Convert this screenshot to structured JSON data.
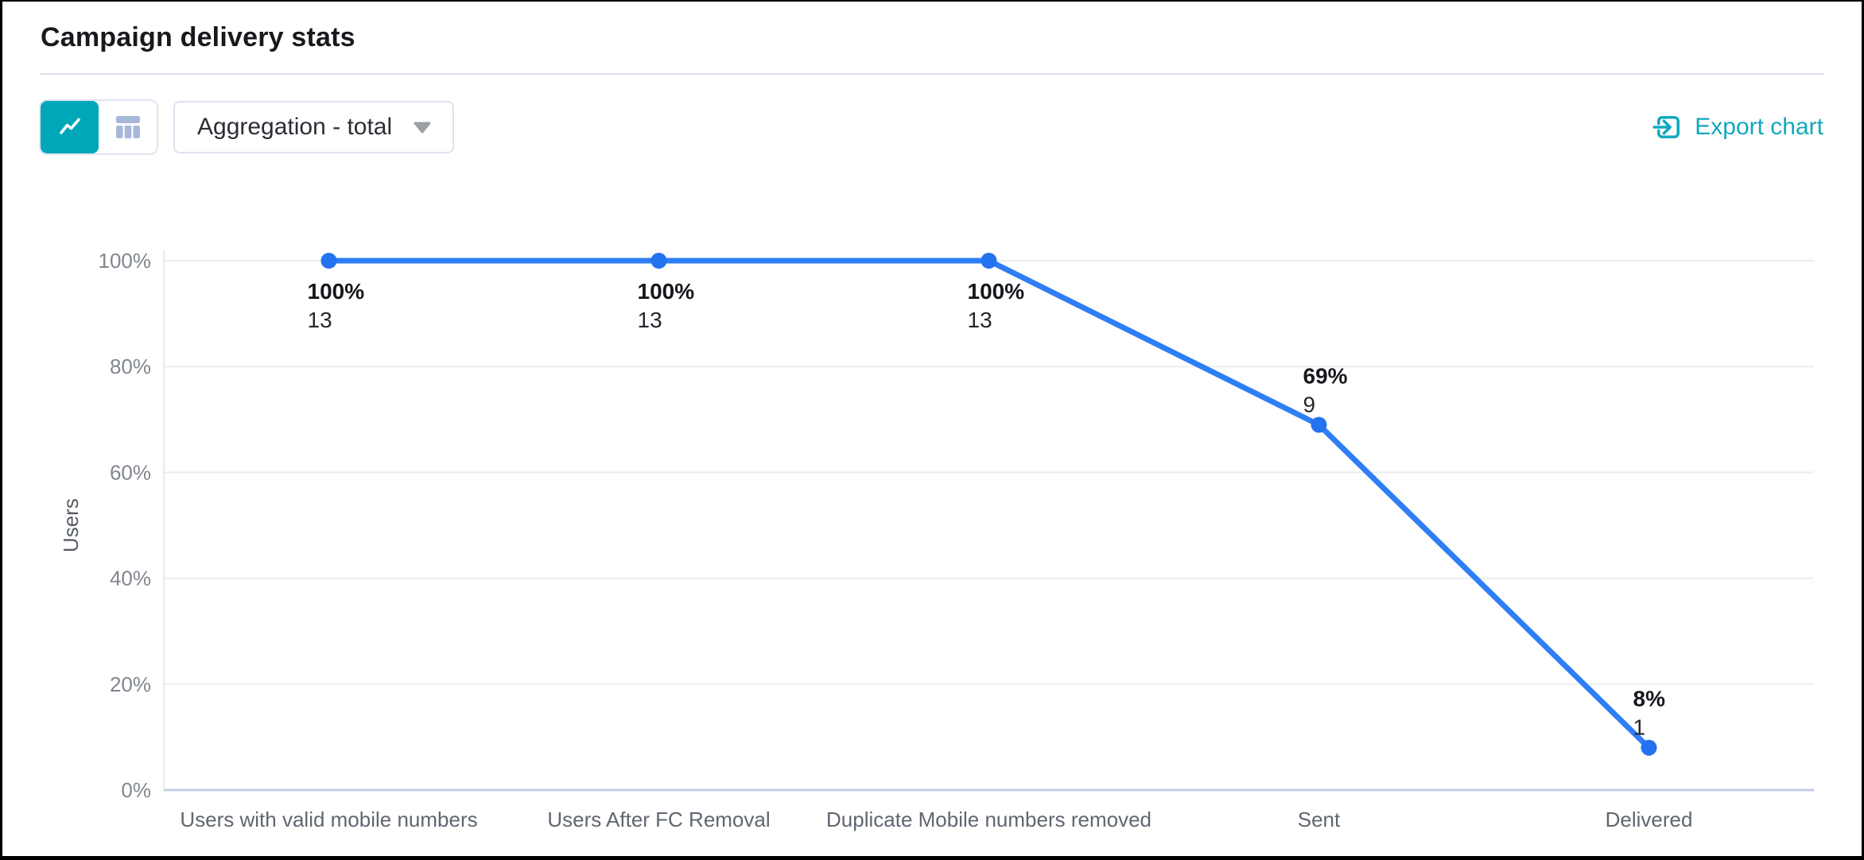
{
  "header": {
    "title": "Campaign delivery stats"
  },
  "toolbar": {
    "view_toggle": {
      "active_view": "line",
      "icons": [
        "line-chart-icon",
        "table-icon"
      ]
    },
    "aggregation_value": "Aggregation - total",
    "export_label": "Export chart"
  },
  "colors": {
    "accent_teal": "#00a7b8",
    "export_teal": "#10a9bd",
    "line_blue": "#2e7ef5",
    "dot_blue": "#2372f0",
    "grid_line": "#ebedf3",
    "axis_vertical": "#e6e9f1",
    "axis_bottom": "#c3cde4",
    "table_icon_gray": "#a6b7d8",
    "chevron_gray": "#9aa0a8"
  },
  "chart_data": {
    "type": "line",
    "title": "Campaign delivery stats",
    "categories": [
      "Users with valid mobile numbers",
      "Users After FC Removal",
      "Duplicate Mobile numbers removed",
      "Sent",
      "Delivered"
    ],
    "series": [
      {
        "name": "Users",
        "percent_values": [
          100,
          100,
          100,
          69,
          8
        ],
        "percent_labels": [
          "100%",
          "100%",
          "100%",
          "69%",
          "8%"
        ],
        "counts": [
          13,
          13,
          13,
          9,
          1
        ]
      }
    ],
    "xlabel": "",
    "ylabel": "Users",
    "ylim": [
      0,
      100
    ],
    "y_ticks": [
      0,
      20,
      40,
      60,
      80,
      100
    ],
    "y_tick_labels": [
      "0%",
      "20%",
      "40%",
      "60%",
      "80%",
      "100%"
    ],
    "grid": true,
    "legend": false
  }
}
